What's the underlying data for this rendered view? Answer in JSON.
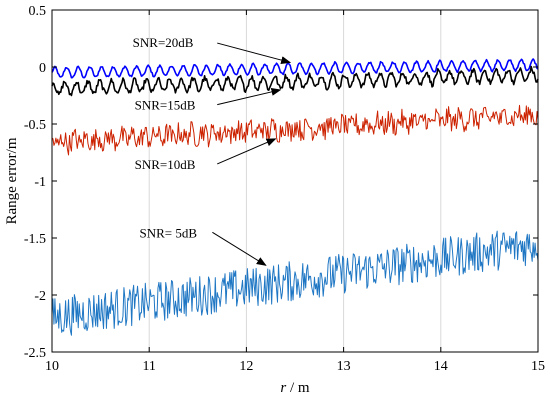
{
  "chart_data": {
    "type": "line",
    "xlabel_var": "r",
    "xlabel_unit": " / m",
    "ylabel": "Range error/m",
    "xlim": [
      10,
      15
    ],
    "ylim": [
      -2.5,
      0.5
    ],
    "xticks": [
      10,
      11,
      12,
      13,
      14,
      15
    ],
    "yticks": [
      0.5,
      0,
      -0.5,
      -1,
      -1.5,
      -2,
      -2.5
    ],
    "xtick_labels": [
      "10",
      "11",
      "12",
      "13",
      "14",
      "15"
    ],
    "ytick_labels": [
      "0.5",
      "0",
      "-0.5",
      "-1",
      "-1.5",
      "-2",
      "-2.5"
    ],
    "grid": "vertical",
    "series": [
      {
        "label": "SNR=20dB",
        "color": "#0000ff",
        "start": -0.05,
        "end": 0.02,
        "amp": 0.045,
        "noise": 0.005,
        "period": 0.12,
        "width": 1.6
      },
      {
        "label": "SNR=15dB",
        "color": "#000000",
        "start": -0.19,
        "end": -0.07,
        "amp": 0.055,
        "noise": 0.012,
        "period": 0.12,
        "width": 1.6
      },
      {
        "label": "SNR=10dB",
        "color": "#cc2200",
        "start": -0.66,
        "end": -0.42,
        "amp": 0.03,
        "noise": 0.045,
        "period": 0.12,
        "width": 1.0
      },
      {
        "label": "SNR= 5dB",
        "color": "#1f77c4",
        "start": -2.2,
        "end": -1.55,
        "amp": 0.0,
        "noise": 0.09,
        "period": 0.12,
        "width": 1.0
      }
    ],
    "annotations": [
      {
        "text": "SNR=20dB",
        "text_x": 10.83,
        "text_y": 0.22,
        "arrow_from": [
          11.7,
          0.21
        ],
        "arrow_to": [
          12.45,
          0.04
        ]
      },
      {
        "text": "SNR=15dB",
        "text_x": 10.85,
        "text_y": -0.33,
        "arrow_from": [
          11.7,
          -0.33
        ],
        "arrow_to": [
          12.35,
          -0.2
        ]
      },
      {
        "text": "SNR=10dB",
        "text_x": 10.85,
        "text_y": -0.85,
        "arrow_from": [
          11.7,
          -0.85
        ],
        "arrow_to": [
          12.3,
          -0.63
        ]
      },
      {
        "text": "SNR= 5dB",
        "text_x": 10.9,
        "text_y": -1.45,
        "arrow_from": [
          11.65,
          -1.45
        ],
        "arrow_to": [
          12.2,
          -1.74
        ]
      }
    ]
  }
}
